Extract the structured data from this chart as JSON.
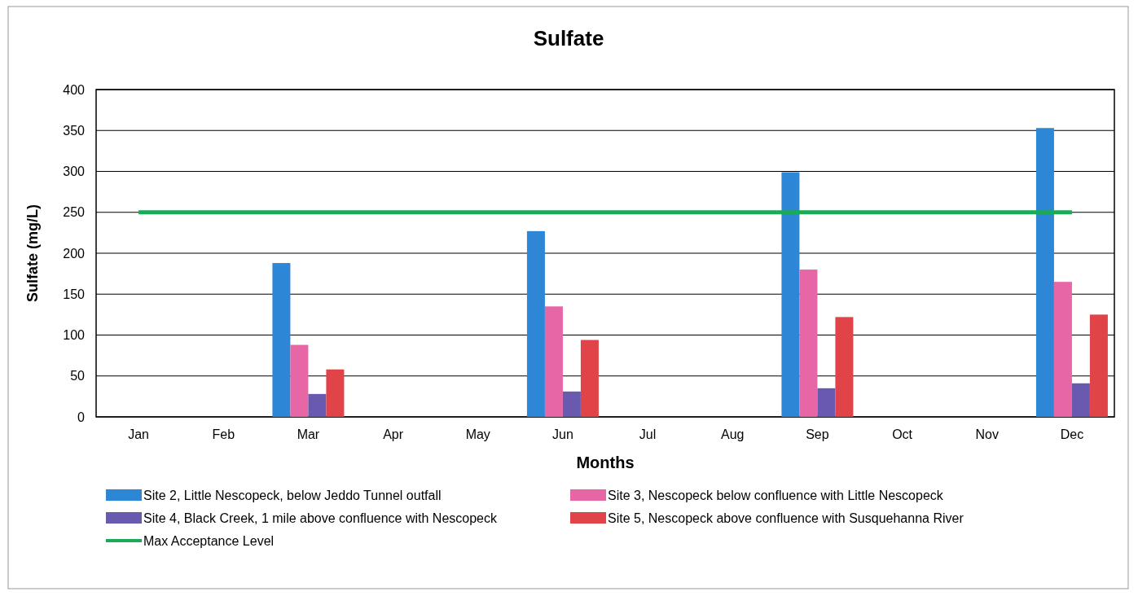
{
  "chart_data": {
    "type": "bar",
    "title": "Sulfate",
    "xlabel": "Months",
    "ylabel": "Sulfate  (mg/L)",
    "categories": [
      "Jan",
      "Feb",
      "Mar",
      "Apr",
      "May",
      "Jun",
      "Jul",
      "Aug",
      "Sep",
      "Oct",
      "Nov",
      "Dec"
    ],
    "series": [
      {
        "name": "Site 2, Little Nescopeck, below Jeddo Tunnel outfall",
        "color": "#2e86d6",
        "values": [
          null,
          null,
          188,
          null,
          null,
          227,
          null,
          null,
          299,
          null,
          null,
          353
        ]
      },
      {
        "name": "Site 3, Nescopeck below confluence with Little Nescopeck",
        "color": "#e666a6",
        "values": [
          null,
          null,
          88,
          null,
          null,
          135,
          null,
          null,
          180,
          null,
          null,
          165
        ]
      },
      {
        "name": "Site 4, Black Creek, 1 mile above confluence with Nescopeck",
        "color": "#6a5aaf",
        "values": [
          null,
          null,
          28,
          null,
          null,
          31,
          null,
          null,
          35,
          null,
          null,
          41
        ]
      },
      {
        "name": "Site 5, Nescopeck above confluence with Susquehanna River",
        "color": "#e04448",
        "values": [
          null,
          null,
          58,
          null,
          null,
          94,
          null,
          null,
          122,
          null,
          null,
          125
        ]
      },
      {
        "name": "Max Acceptance Level",
        "color": "#1aaa5a",
        "type": "line",
        "marker": "none",
        "values": [
          250,
          250,
          250,
          250,
          250,
          250,
          250,
          250,
          250,
          250,
          250,
          250
        ]
      }
    ],
    "ylim": [
      0,
      400
    ],
    "yticks": [
      0,
      50,
      100,
      150,
      200,
      250,
      300,
      350,
      400
    ],
    "grid": "y",
    "legend": "bottom"
  }
}
